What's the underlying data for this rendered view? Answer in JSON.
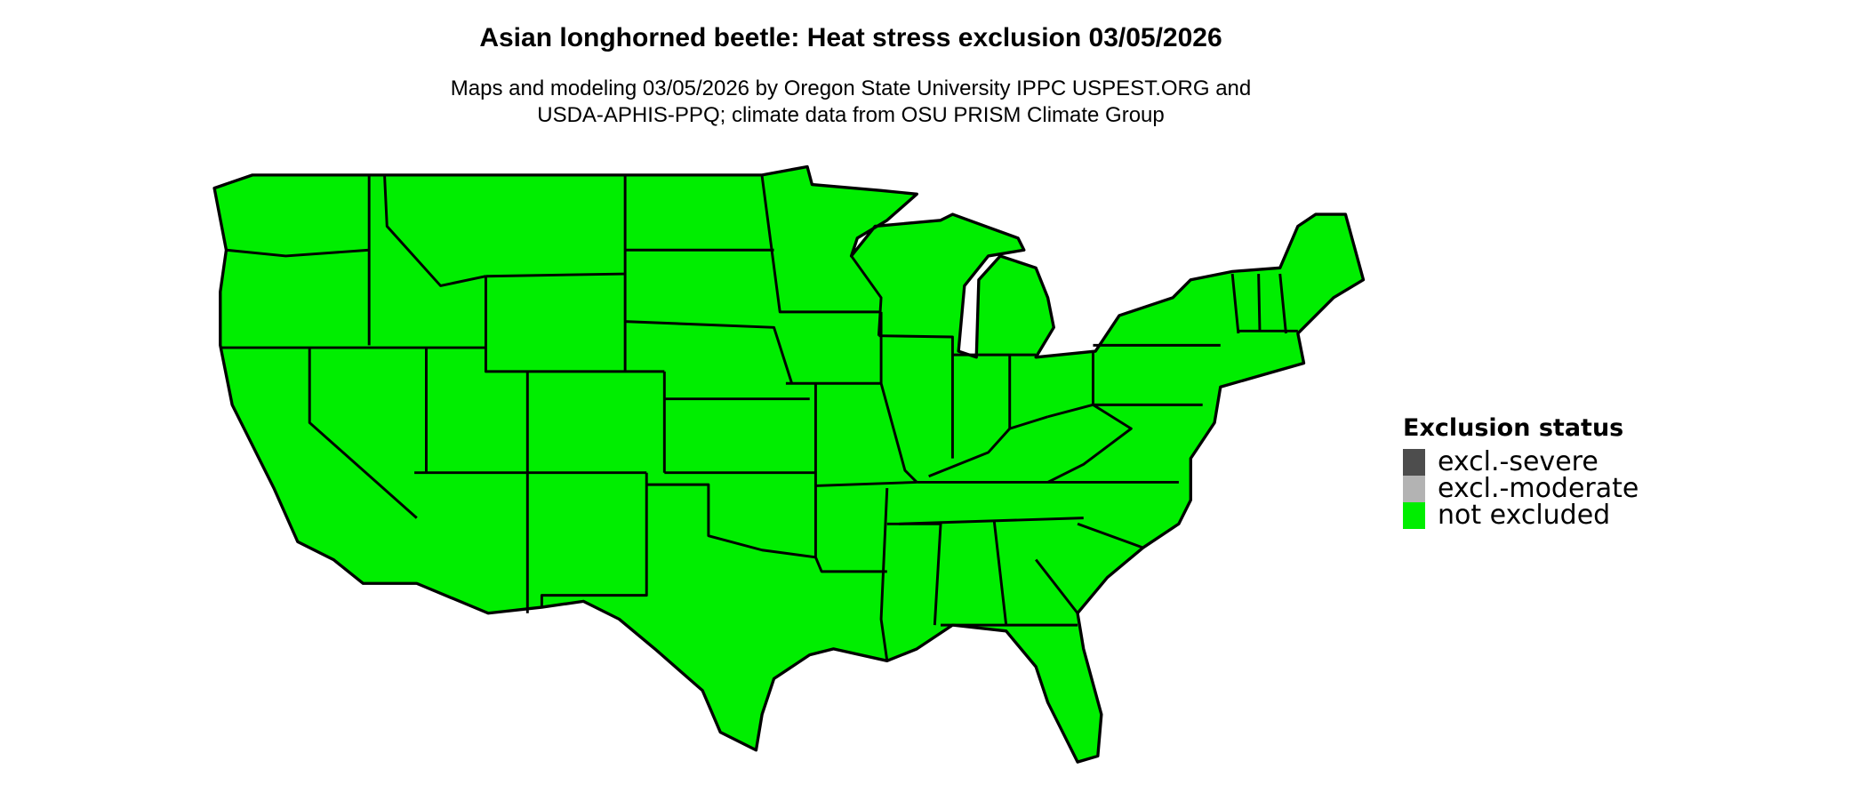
{
  "title": "Asian longhorned beetle: Heat stress exclusion 03/05/2026",
  "subtitle_line1": "Maps and modeling 03/05/2026 by Oregon State University IPPC USPEST.ORG and",
  "subtitle_line2": "USDA-APHIS-PPQ; climate data from OSU PRISM Climate Group",
  "map": {
    "fill_color": "#00ee00",
    "border_color": "#000000",
    "region": "Contiguous United States"
  },
  "legend": {
    "title": "Exclusion status",
    "items": [
      {
        "label": "excl.-severe",
        "color": "#4d4d4d"
      },
      {
        "label": "excl.-moderate",
        "color": "#b3b3b3"
      },
      {
        "label": "not excluded",
        "color": "#00ee00"
      }
    ]
  }
}
